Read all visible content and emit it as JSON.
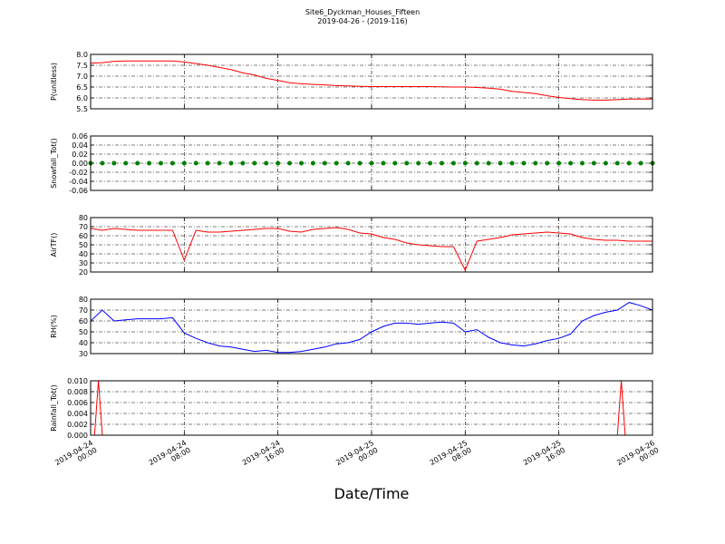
{
  "title": "Site6_Dyckman_Houses_Fifteen",
  "subtitle": "2019-04-26 - (2019-116)",
  "xlabel": "Date/Time",
  "chart_data": [
    {
      "type": "line",
      "ylabel": "P(unitless)",
      "color": "#ff0000",
      "grid": true,
      "xlim": [
        "2019-04-24 00:00",
        "2019-04-26 00:00"
      ],
      "xticks": [
        "2019-04-24 00:00",
        "2019-04-24 08:00",
        "2019-04-24 16:00",
        "2019-04-25 00:00",
        "2019-04-25 08:00",
        "2019-04-25 16:00",
        "2019-04-26 00:00"
      ],
      "ylim": [
        5.5,
        8.0
      ],
      "yticks": [
        5.5,
        {
          "value": 6,
          "label": "6.0"
        },
        6.5,
        {
          "value": 7,
          "label": "7.0"
        },
        7.5,
        {
          "value": 8,
          "label": "8.0"
        }
      ],
      "x": [
        "2019-04-24 00:00",
        "2019-04-24 01:00",
        "2019-04-24 02:00",
        "2019-04-24 03:00",
        "2019-04-24 04:00",
        "2019-04-24 05:00",
        "2019-04-24 06:00",
        "2019-04-24 07:00",
        "2019-04-24 08:00",
        "2019-04-24 09:00",
        "2019-04-24 10:00",
        "2019-04-24 11:00",
        "2019-04-24 12:00",
        "2019-04-24 13:00",
        "2019-04-24 14:00",
        "2019-04-24 15:00",
        "2019-04-24 16:00",
        "2019-04-24 17:00",
        "2019-04-24 18:00",
        "2019-04-24 19:00",
        "2019-04-24 20:00",
        "2019-04-24 21:00",
        "2019-04-24 22:00",
        "2019-04-24 23:00",
        "2019-04-25 00:00",
        "2019-04-25 01:00",
        "2019-04-25 02:00",
        "2019-04-25 03:00",
        "2019-04-25 04:00",
        "2019-04-25 05:00",
        "2019-04-25 06:00",
        "2019-04-25 07:00",
        "2019-04-25 08:00",
        "2019-04-25 09:00",
        "2019-04-25 10:00",
        "2019-04-25 11:00",
        "2019-04-25 12:00",
        "2019-04-25 13:00",
        "2019-04-25 14:00",
        "2019-04-25 15:00",
        "2019-04-25 16:00",
        "2019-04-25 17:00",
        "2019-04-25 18:00",
        "2019-04-25 19:00",
        "2019-04-25 20:00",
        "2019-04-25 21:00",
        "2019-04-25 22:00",
        "2019-04-25 23:00",
        "2019-04-26 00:00"
      ],
      "values": [
        7.6,
        7.62,
        7.68,
        7.7,
        7.7,
        7.7,
        7.7,
        7.7,
        7.65,
        7.58,
        7.5,
        7.4,
        7.3,
        7.15,
        7.05,
        6.9,
        6.8,
        6.7,
        6.65,
        6.62,
        6.6,
        6.57,
        6.55,
        6.53,
        6.52,
        6.52,
        6.52,
        6.52,
        6.52,
        6.52,
        6.51,
        6.5,
        6.5,
        6.48,
        6.45,
        6.4,
        6.3,
        6.25,
        6.2,
        6.1,
        6.02,
        5.97,
        5.92,
        5.9,
        5.9,
        5.92,
        5.95,
        5.95,
        5.95
      ]
    },
    {
      "type": "scatter",
      "ylabel": "Snowfall_Tot()",
      "color": "#008000",
      "grid": true,
      "xlim": [
        "2019-04-24 00:00",
        "2019-04-26 00:00"
      ],
      "xticks": [
        "2019-04-24 00:00",
        "2019-04-24 08:00",
        "2019-04-24 16:00",
        "2019-04-25 00:00",
        "2019-04-25 08:00",
        "2019-04-25 16:00",
        "2019-04-26 00:00"
      ],
      "ylim": [
        -0.06,
        0.06
      ],
      "yticks": [
        -0.06,
        -0.04,
        -0.02,
        {
          "value": 0,
          "label": "0.00"
        },
        0.02,
        0.04,
        0.06
      ],
      "x": [
        "2019-04-24 00:00",
        "2019-04-24 01:00",
        "2019-04-24 02:00",
        "2019-04-24 03:00",
        "2019-04-24 04:00",
        "2019-04-24 05:00",
        "2019-04-24 06:00",
        "2019-04-24 07:00",
        "2019-04-24 08:00",
        "2019-04-24 09:00",
        "2019-04-24 10:00",
        "2019-04-24 11:00",
        "2019-04-24 12:00",
        "2019-04-24 13:00",
        "2019-04-24 14:00",
        "2019-04-24 15:00",
        "2019-04-24 16:00",
        "2019-04-24 17:00",
        "2019-04-24 18:00",
        "2019-04-24 19:00",
        "2019-04-24 20:00",
        "2019-04-24 21:00",
        "2019-04-24 22:00",
        "2019-04-24 23:00",
        "2019-04-25 00:00",
        "2019-04-25 01:00",
        "2019-04-25 02:00",
        "2019-04-25 03:00",
        "2019-04-25 04:00",
        "2019-04-25 05:00",
        "2019-04-25 06:00",
        "2019-04-25 07:00",
        "2019-04-25 08:00",
        "2019-04-25 09:00",
        "2019-04-25 10:00",
        "2019-04-25 11:00",
        "2019-04-25 12:00",
        "2019-04-25 13:00",
        "2019-04-25 14:00",
        "2019-04-25 15:00",
        "2019-04-25 16:00",
        "2019-04-25 17:00",
        "2019-04-25 18:00",
        "2019-04-25 19:00",
        "2019-04-25 20:00",
        "2019-04-25 21:00",
        "2019-04-25 22:00",
        "2019-04-25 23:00",
        "2019-04-26 00:00"
      ],
      "values": [
        0,
        0,
        0,
        0,
        0,
        0,
        0,
        0,
        0,
        0,
        0,
        0,
        0,
        0,
        0,
        0,
        0,
        0,
        0,
        0,
        0,
        0,
        0,
        0,
        0,
        0,
        0,
        0,
        0,
        0,
        0,
        0,
        0,
        0,
        0,
        0,
        0,
        0,
        0,
        0,
        0,
        0,
        0,
        0,
        0,
        0,
        0,
        0,
        0
      ]
    },
    {
      "type": "line",
      "ylabel": "AirTF()",
      "color": "#ff0000",
      "grid": true,
      "xlim": [
        "2019-04-24 00:00",
        "2019-04-26 00:00"
      ],
      "xticks": [
        "2019-04-24 00:00",
        "2019-04-24 08:00",
        "2019-04-24 16:00",
        "2019-04-25 00:00",
        "2019-04-25 08:00",
        "2019-04-25 16:00",
        "2019-04-26 00:00"
      ],
      "ylim": [
        20,
        80
      ],
      "yticks": [
        20,
        30,
        40,
        50,
        60,
        70,
        80
      ],
      "x": [
        "2019-04-24 00:00",
        "2019-04-24 01:00",
        "2019-04-24 02:00",
        "2019-04-24 03:00",
        "2019-04-24 04:00",
        "2019-04-24 05:00",
        "2019-04-24 06:00",
        "2019-04-24 07:00",
        "2019-04-24 08:00",
        "2019-04-24 09:00",
        "2019-04-24 10:00",
        "2019-04-24 11:00",
        "2019-04-24 12:00",
        "2019-04-24 13:00",
        "2019-04-24 14:00",
        "2019-04-24 15:00",
        "2019-04-24 16:00",
        "2019-04-24 17:00",
        "2019-04-24 18:00",
        "2019-04-24 19:00",
        "2019-04-24 20:00",
        "2019-04-24 21:00",
        "2019-04-24 22:00",
        "2019-04-24 23:00",
        "2019-04-25 00:00",
        "2019-04-25 01:00",
        "2019-04-25 02:00",
        "2019-04-25 03:00",
        "2019-04-25 04:00",
        "2019-04-25 05:00",
        "2019-04-25 06:00",
        "2019-04-25 07:00",
        "2019-04-25 08:00",
        "2019-04-25 09:00",
        "2019-04-25 10:00",
        "2019-04-25 11:00",
        "2019-04-25 12:00",
        "2019-04-25 13:00",
        "2019-04-25 14:00",
        "2019-04-25 15:00",
        "2019-04-25 16:00",
        "2019-04-25 17:00",
        "2019-04-25 18:00",
        "2019-04-25 19:00",
        "2019-04-25 20:00",
        "2019-04-25 21:00",
        "2019-04-25 22:00",
        "2019-04-25 23:00",
        "2019-04-26 00:00"
      ],
      "values": [
        68,
        66,
        68,
        67,
        66,
        66,
        66,
        66,
        33,
        66,
        64,
        64,
        65,
        66,
        67,
        68,
        68,
        65,
        64,
        67,
        68,
        69,
        67,
        63,
        62,
        58,
        56,
        52,
        50,
        49,
        48,
        48,
        22,
        54,
        56,
        58,
        61,
        62,
        63,
        64,
        63,
        62,
        58,
        56,
        55,
        55,
        54,
        54,
        54
      ]
    },
    {
      "type": "line",
      "ylabel": "RH(%)",
      "color": "#0000ff",
      "grid": true,
      "xlim": [
        "2019-04-24 00:00",
        "2019-04-26 00:00"
      ],
      "xticks": [
        "2019-04-24 00:00",
        "2019-04-24 08:00",
        "2019-04-24 16:00",
        "2019-04-25 00:00",
        "2019-04-25 08:00",
        "2019-04-25 16:00",
        "2019-04-26 00:00"
      ],
      "ylim": [
        30,
        80
      ],
      "yticks": [
        30,
        40,
        50,
        60,
        70,
        80
      ],
      "x": [
        "2019-04-24 00:00",
        "2019-04-24 01:00",
        "2019-04-24 02:00",
        "2019-04-24 03:00",
        "2019-04-24 04:00",
        "2019-04-24 05:00",
        "2019-04-24 06:00",
        "2019-04-24 07:00",
        "2019-04-24 08:00",
        "2019-04-24 09:00",
        "2019-04-24 10:00",
        "2019-04-24 11:00",
        "2019-04-24 12:00",
        "2019-04-24 13:00",
        "2019-04-24 14:00",
        "2019-04-24 15:00",
        "2019-04-24 16:00",
        "2019-04-24 17:00",
        "2019-04-24 18:00",
        "2019-04-24 19:00",
        "2019-04-24 20:00",
        "2019-04-24 21:00",
        "2019-04-24 22:00",
        "2019-04-24 23:00",
        "2019-04-25 00:00",
        "2019-04-25 01:00",
        "2019-04-25 02:00",
        "2019-04-25 03:00",
        "2019-04-25 04:00",
        "2019-04-25 05:00",
        "2019-04-25 06:00",
        "2019-04-25 07:00",
        "2019-04-25 08:00",
        "2019-04-25 09:00",
        "2019-04-25 10:00",
        "2019-04-25 11:00",
        "2019-04-25 12:00",
        "2019-04-25 13:00",
        "2019-04-25 14:00",
        "2019-04-25 15:00",
        "2019-04-25 16:00",
        "2019-04-25 17:00",
        "2019-04-25 18:00",
        "2019-04-25 19:00",
        "2019-04-25 20:00",
        "2019-04-25 21:00",
        "2019-04-25 22:00",
        "2019-04-25 23:00",
        "2019-04-26 00:00"
      ],
      "values": [
        60,
        70,
        60,
        61,
        62,
        62,
        62,
        63,
        49,
        44,
        40,
        37,
        36,
        34,
        32,
        33,
        31,
        31,
        32,
        34,
        36,
        39,
        40,
        43,
        50,
        55,
        58,
        58,
        57,
        58,
        59,
        58,
        50,
        52,
        45,
        40,
        38,
        37,
        39,
        42,
        44,
        48,
        60,
        65,
        68,
        70,
        77,
        74,
        70
      ]
    },
    {
      "type": "line",
      "ylabel": "Rainfall_Tot()",
      "color": "#ff0000",
      "grid": true,
      "xlim": [
        "2019-04-24 00:00",
        "2019-04-26 00:00"
      ],
      "xticks": [
        {
          "value": "2019-04-24 00:00",
          "label": "2019-04-24\n00:00"
        },
        {
          "value": "2019-04-24 08:00",
          "label": "2019-04-24\n08:00"
        },
        {
          "value": "2019-04-24 16:00",
          "label": "2019-04-24\n16:00"
        },
        {
          "value": "2019-04-25 00:00",
          "label": "2019-04-25\n00:00"
        },
        {
          "value": "2019-04-25 08:00",
          "label": "2019-04-25\n08:00"
        },
        {
          "value": "2019-04-25 16:00",
          "label": "2019-04-25\n16:00"
        },
        {
          "value": "2019-04-26 00:00",
          "label": "2019-04-26\n00:00"
        }
      ],
      "ylim": [
        0,
        0.01
      ],
      "yticks": [
        {
          "value": 0,
          "label": "0.000"
        },
        0.002,
        0.004,
        0.006,
        0.008,
        {
          "value": 0.01,
          "label": "0.010"
        }
      ],
      "x": [
        "2019-04-24 00:00",
        "2019-04-24 00:20",
        "2019-04-24 00:40",
        "2019-04-24 01:00",
        "2019-04-25 21:00",
        "2019-04-25 21:20",
        "2019-04-25 21:40",
        "2019-04-26 00:00"
      ],
      "values": [
        0,
        0,
        0.01,
        0,
        0,
        0.01,
        0,
        0
      ]
    }
  ]
}
